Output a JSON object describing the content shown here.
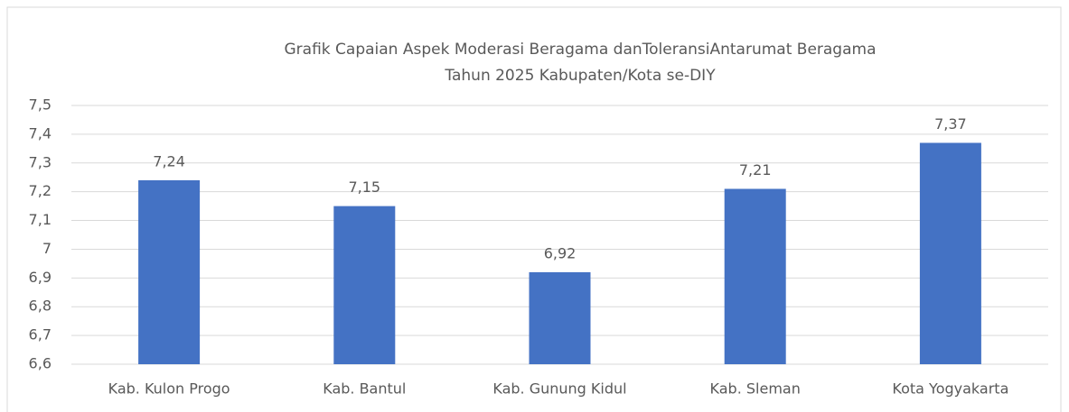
{
  "chart_data": {
    "type": "bar",
    "title": [
      "Grafik Capaian Aspek Moderasi Beragama danToleransiAntarumat Beragama",
      "Tahun 2025 Kabupaten/Kota se-DIY"
    ],
    "categories": [
      "Kab. Kulon Progo",
      "Kab. Bantul",
      "Kab. Gunung Kidul",
      "Kab. Sleman",
      "Kota Yogyakarta"
    ],
    "values": [
      7.24,
      7.15,
      6.92,
      7.21,
      7.37
    ],
    "value_labels": [
      "7,24",
      "7,15",
      "6,92",
      "7,21",
      "7,37"
    ],
    "color": "#4472c4",
    "ylim": [
      6.6,
      7.5
    ],
    "yticks": [
      {
        "value": 6.6,
        "label": "6,6"
      },
      {
        "value": 6.7,
        "label": "6,7"
      },
      {
        "value": 6.8,
        "label": "6,8"
      },
      {
        "value": 6.9,
        "label": "6,9"
      },
      7,
      {
        "value": 7.1,
        "label": "7,1"
      },
      {
        "value": 7.2,
        "label": "7,2"
      },
      {
        "value": 7.3,
        "label": "7,3"
      },
      {
        "value": 7.4,
        "label": "7,4"
      },
      {
        "value": 7.5,
        "label": "7,5"
      }
    ],
    "grid": true
  }
}
